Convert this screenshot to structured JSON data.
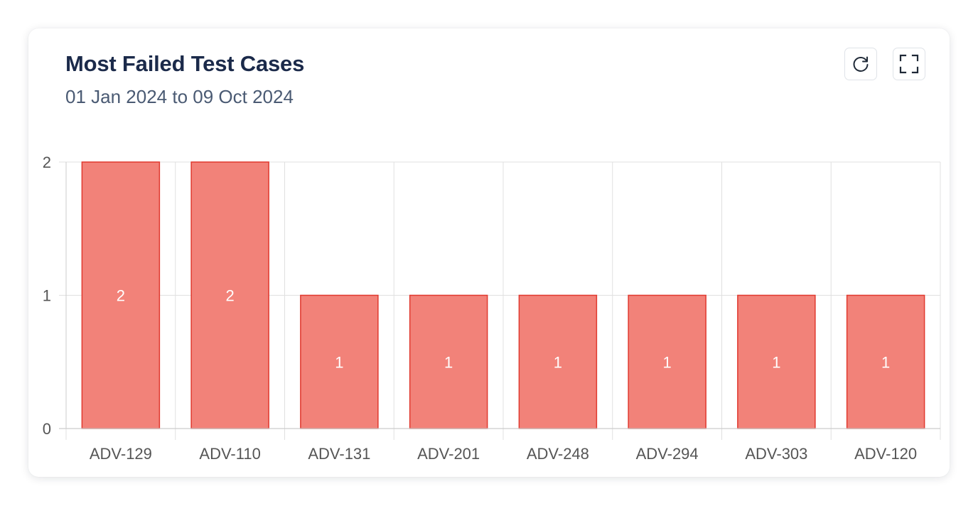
{
  "card": {
    "title": "Most Failed Test Cases",
    "subtitle": "01 Jan 2024 to 09 Oct 2024",
    "actions": {
      "refresh_icon": "refresh-icon",
      "expand_icon": "fullscreen-icon"
    }
  },
  "colors": {
    "bar_fill": "#f28279",
    "bar_stroke": "#e0392f",
    "grid": "#e0e0e0",
    "title": "#1b2a4a",
    "subtitle": "#4a5a73"
  },
  "chart_data": {
    "type": "bar",
    "categories": [
      "ADV-129",
      "ADV-110",
      "ADV-131",
      "ADV-201",
      "ADV-248",
      "ADV-294",
      "ADV-303",
      "ADV-120"
    ],
    "values": [
      2,
      2,
      1,
      1,
      1,
      1,
      1,
      1
    ],
    "ylim": [
      0,
      2
    ],
    "yticks": [
      0,
      1,
      2
    ],
    "data_labels": true,
    "grid": true,
    "legend": "none"
  }
}
